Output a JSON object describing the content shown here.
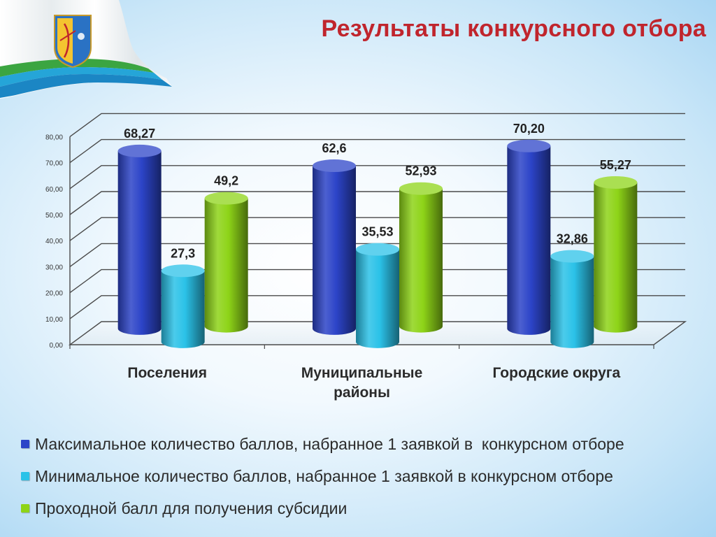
{
  "slide": {
    "title": "Результаты конкурсного отбора"
  },
  "chart_data": {
    "type": "bar",
    "title": "Результаты конкурсного отбора",
    "categories": [
      "Поселения",
      "Муниципальные районы",
      "Городские округа"
    ],
    "ylim": [
      0,
      80
    ],
    "yticks": [
      "0,00",
      "10,00",
      "20,00",
      "30,00",
      "40,00",
      "50,00",
      "60,00",
      "70,00",
      "80,00"
    ],
    "grid": true,
    "legend_position": "bottom",
    "series": [
      {
        "name": "Максимальное количество баллов, набранное 1 заявкой в  конкурсном отборе",
        "color": "#2c44c8",
        "values": [
          68.27,
          62.6,
          70.2
        ],
        "labels": [
          "68,27",
          "62,6",
          "70,20"
        ]
      },
      {
        "name": "Минимальное количество баллов, набранное 1 заявкой в конкурсном отборе",
        "color": "#2bc2e8",
        "values": [
          27.3,
          35.53,
          32.86
        ],
        "labels": [
          "27,3",
          "35,53",
          "32,86"
        ]
      },
      {
        "name": "Проходной балл для получения субсидии",
        "color": "#8ed418",
        "values": [
          49.2,
          52.93,
          55.27
        ],
        "labels": [
          "49,2",
          "52,93",
          "55,27"
        ]
      }
    ]
  }
}
